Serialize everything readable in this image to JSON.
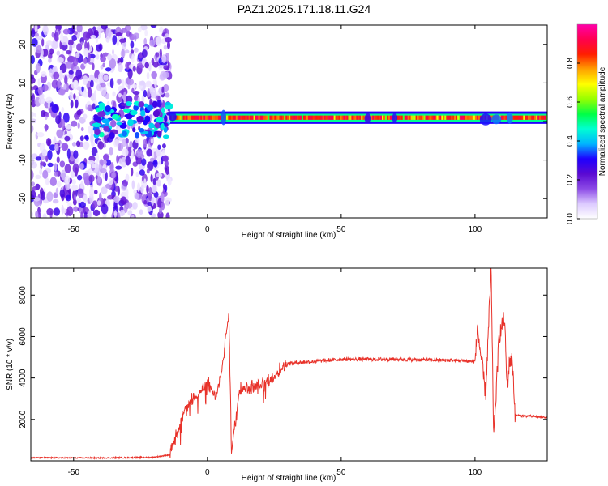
{
  "figure_title": "PAZ1.2025.171.18.11.G24",
  "chart_data": [
    {
      "type": "heatmap",
      "xlabel": "Height of straight line (km)",
      "ylabel": "Frequency (Hz)",
      "xlim": [
        -66,
        127
      ],
      "ylim": [
        -25,
        25
      ],
      "xticks": [
        -50,
        0,
        50,
        100
      ],
      "yticks": [
        -20,
        -10,
        0,
        10,
        20
      ],
      "colorbar": {
        "label": "Normalized spectral amplitude",
        "range": [
          0.0,
          1.0
        ],
        "ticks": [
          0.0,
          0.2,
          0.4,
          0.6,
          0.8
        ],
        "colormap": "rainbow (white → purple → blue → cyan → green → yellow → orange → red → magenta)"
      },
      "colorbar_stops": [
        "#ffffff",
        "#dccaff",
        "#8c4ae6",
        "#5a0ad2",
        "#1e00ff",
        "#00b4ff",
        "#00ffd2",
        "#00ff46",
        "#96ff00",
        "#ffff00",
        "#ffa000",
        "#ff1e00",
        "#ff0050",
        "#ff00aa"
      ],
      "regions": [
        {
          "x_range": [
            -66,
            -14
          ],
          "freq_range_hz": [
            -25,
            25
          ],
          "amplitude": "low noise scatter 0.0–0.3"
        },
        {
          "x_range": [
            -42,
            -14
          ],
          "freq_range_hz": [
            -4,
            5
          ],
          "amplitude": "blobs 0.2–0.6"
        },
        {
          "x_range": [
            -14,
            127
          ],
          "center_freq_hz": 1.0,
          "amplitude": "narrow band 0.7–0.95"
        }
      ],
      "grid": false
    },
    {
      "type": "line",
      "xlabel": "Height of straight line (km)",
      "ylabel": "SNR (10 * v/v)",
      "xlim": [
        -66,
        127
      ],
      "ylim": [
        0,
        9300
      ],
      "xticks": [
        -50,
        0,
        50,
        100
      ],
      "yticks": [
        2000,
        4000,
        6000,
        8000
      ],
      "color": "#e8322a",
      "grid": false,
      "key_points": [
        {
          "x": -66,
          "y": 150
        },
        {
          "x": -40,
          "y": 140
        },
        {
          "x": -20,
          "y": 170
        },
        {
          "x": -14,
          "y": 300
        },
        {
          "x": -11,
          "y": 1400
        },
        {
          "x": -8,
          "y": 2600
        },
        {
          "x": -5,
          "y": 3100
        },
        {
          "x": -2,
          "y": 3400
        },
        {
          "x": 0,
          "y": 3800
        },
        {
          "x": 3,
          "y": 3000
        },
        {
          "x": 5,
          "y": 4000
        },
        {
          "x": 8,
          "y": 7100
        },
        {
          "x": 9,
          "y": 500
        },
        {
          "x": 12,
          "y": 3500
        },
        {
          "x": 20,
          "y": 3600
        },
        {
          "x": 30,
          "y": 4700
        },
        {
          "x": 50,
          "y": 4900
        },
        {
          "x": 70,
          "y": 4900
        },
        {
          "x": 90,
          "y": 4850
        },
        {
          "x": 100,
          "y": 4800
        },
        {
          "x": 101,
          "y": 6300
        },
        {
          "x": 104,
          "y": 3200
        },
        {
          "x": 106,
          "y": 9300
        },
        {
          "x": 107,
          "y": 1100
        },
        {
          "x": 109,
          "y": 6000
        },
        {
          "x": 111,
          "y": 6900
        },
        {
          "x": 112,
          "y": 3500
        },
        {
          "x": 113,
          "y": 4900
        },
        {
          "x": 114,
          "y": 4800
        },
        {
          "x": 115,
          "y": 2200
        },
        {
          "x": 127,
          "y": 2100
        }
      ]
    }
  ]
}
